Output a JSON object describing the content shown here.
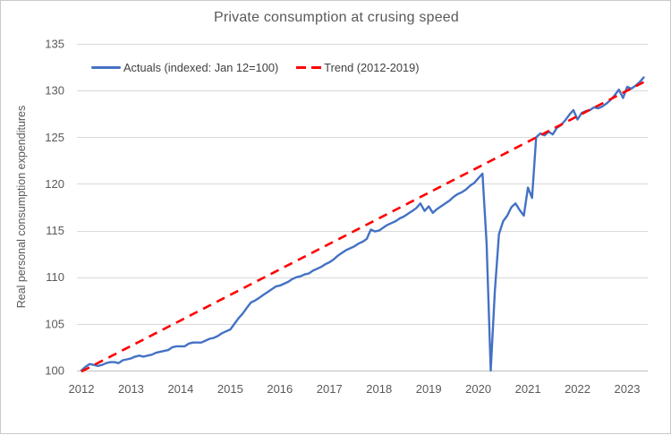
{
  "window": {
    "background_color": "#FFFFFF",
    "border_color": "#C9C9C9"
  },
  "chart": {
    "title": "Private consumption at crusing speed",
    "y_axis_title": "Real personal consumption  expenditures",
    "legend": {
      "actuals_label": "Actuals (indexed: Jan 12=100)",
      "trend_label": "Trend (2012-2019)"
    },
    "colors": {
      "actuals_line": "#4472C4",
      "trend_line": "#FF0000",
      "text": "#595959",
      "gridline": "#D9D9D9",
      "axis_line": "#BFBFBF"
    }
  },
  "chart_data": {
    "type": "line",
    "title": "Private consumption at crusing speed",
    "xlabel": "",
    "ylabel": "Real personal consumption  expenditures",
    "ylim": [
      100,
      135
    ],
    "y_ticks": [
      100,
      105,
      110,
      115,
      120,
      125,
      130,
      135
    ],
    "x_tick_labels": [
      "2012",
      "2013",
      "2014",
      "2015",
      "2016",
      "2017",
      "2018",
      "2019",
      "2020",
      "2021",
      "2022",
      "2023"
    ],
    "x_start_month": "2012-01",
    "x_end_month": "2023-05",
    "grid": "horizontal",
    "legend_position": "inside-top-left",
    "series": [
      {
        "name": "Actuals (indexed: Jan 12=100)",
        "style": "solid",
        "color": "#4472C4",
        "frequency": "monthly",
        "monthly_values": [
          100.0,
          100.4,
          100.7,
          100.6,
          100.5,
          100.6,
          100.8,
          100.9,
          100.9,
          100.8,
          101.1,
          101.2,
          101.3,
          101.5,
          101.6,
          101.5,
          101.6,
          101.7,
          101.9,
          102.0,
          102.1,
          102.2,
          102.5,
          102.6,
          102.6,
          102.6,
          102.9,
          103.0,
          103.0,
          103.0,
          103.2,
          103.4,
          103.5,
          103.7,
          104.0,
          104.2,
          104.4,
          105.0,
          105.6,
          106.1,
          106.7,
          107.3,
          107.5,
          107.8,
          108.1,
          108.4,
          108.7,
          109.0,
          109.1,
          109.3,
          109.5,
          109.8,
          110.0,
          110.1,
          110.3,
          110.4,
          110.7,
          110.9,
          111.1,
          111.4,
          111.6,
          111.9,
          112.3,
          112.6,
          112.9,
          113.1,
          113.3,
          113.6,
          113.8,
          114.1,
          115.1,
          114.9,
          115.0,
          115.3,
          115.6,
          115.8,
          116.0,
          116.3,
          116.5,
          116.8,
          117.1,
          117.4,
          117.9,
          117.1,
          117.6,
          116.9,
          117.3,
          117.6,
          117.9,
          118.2,
          118.6,
          118.9,
          119.1,
          119.4,
          119.8,
          120.1,
          120.6,
          121.1,
          113.6,
          100.0,
          108.5,
          114.6,
          116.0,
          116.6,
          117.5,
          117.9,
          117.2,
          116.6,
          119.6,
          118.5,
          125.0,
          125.4,
          125.2,
          125.6,
          125.3,
          126.0,
          126.3,
          126.8,
          127.4,
          127.9,
          126.9,
          127.6,
          127.8,
          127.9,
          128.2,
          128.1,
          128.3,
          128.6,
          129.0,
          129.5,
          130.1,
          129.2,
          130.4,
          130.2,
          130.5,
          130.9,
          131.4
        ]
      },
      {
        "name": "Trend (2012-2019)",
        "style": "dashed",
        "color": "#FF0000",
        "shape": "linear",
        "trend_linear": {
          "start_month": "2012-01",
          "start_value": 99.9,
          "end_month": "2023-05",
          "end_value": 130.9
        }
      }
    ]
  }
}
